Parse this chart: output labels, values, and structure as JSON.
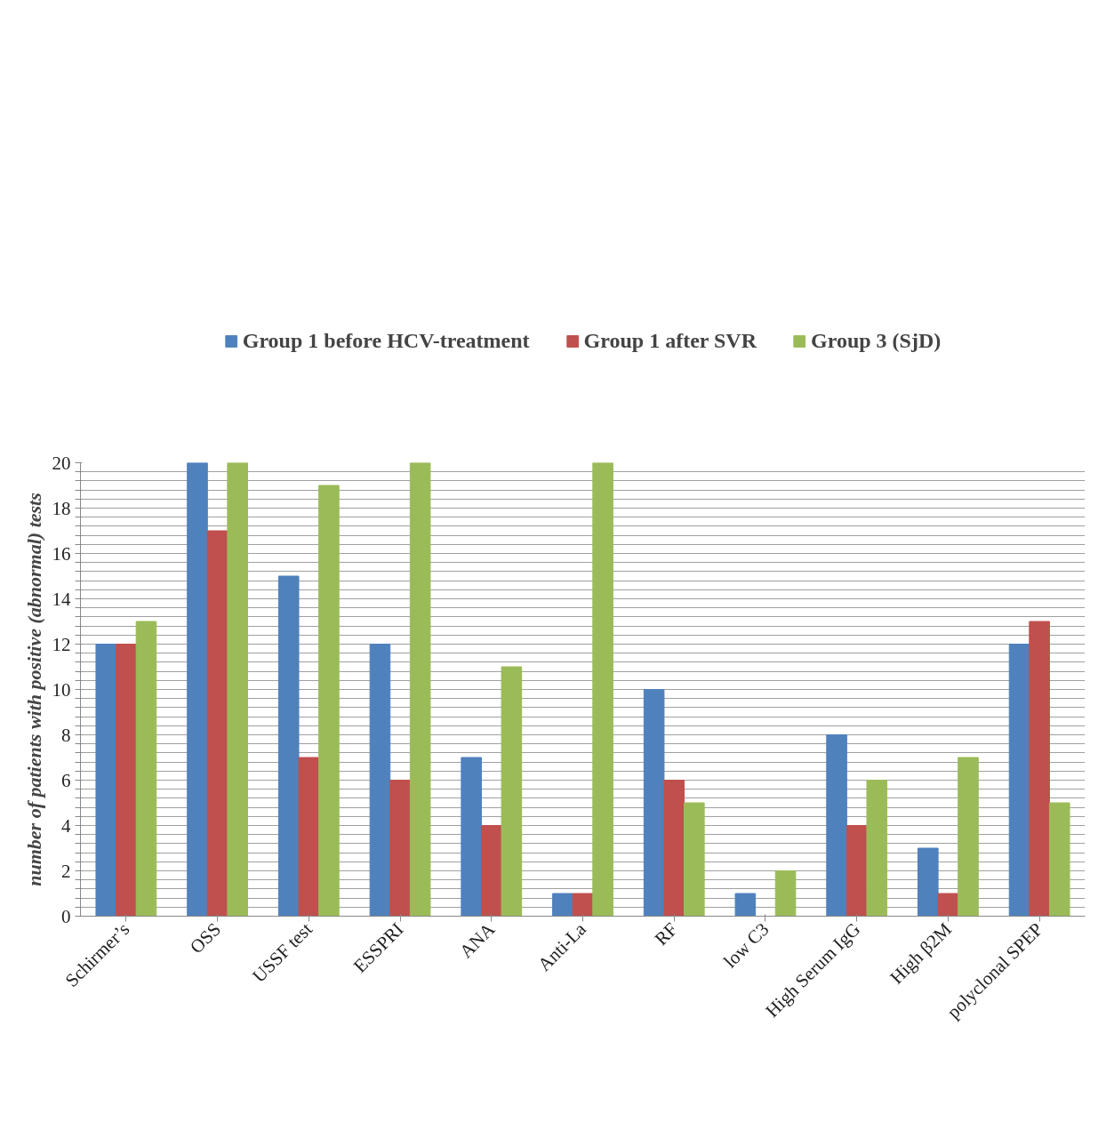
{
  "chart_data": {
    "type": "bar",
    "ylabel": "number of patients with positive (abnormal) tests",
    "categories": [
      "Schirmer’s",
      "OSS",
      "USSF test",
      "ESSPRI",
      "ANA",
      "Anti-La",
      "RF",
      "low C3",
      "High Serum IgG",
      "High β2M",
      "polyclonal SPEP"
    ],
    "series": [
      {
        "name": "Group 1 before HCV-treatment",
        "color": "#4f81bd",
        "values": [
          12,
          20,
          15,
          12,
          7,
          1,
          10,
          1,
          8,
          3,
          12
        ]
      },
      {
        "name": "Group 1 after SVR",
        "color": "#c0504d",
        "values": [
          12,
          17,
          7,
          6,
          4,
          1,
          6,
          0,
          4,
          1,
          13
        ]
      },
      {
        "name": "Group 3 (SjD)",
        "color": "#9bbb59",
        "values": [
          13,
          20,
          19,
          20,
          11,
          20,
          5,
          2,
          6,
          7,
          5
        ]
      }
    ],
    "ylim": [
      0,
      20
    ],
    "yticks": [
      0,
      {
        "value": 0.4,
        "label": null
      },
      {
        "value": 0.8,
        "label": null
      },
      {
        "value": 1.2,
        "label": null
      },
      {
        "value": 1.6,
        "label": null
      },
      2,
      {
        "value": 2.4,
        "label": null
      },
      {
        "value": 2.8,
        "label": null
      },
      {
        "value": 3.2,
        "label": null
      },
      {
        "value": 3.6,
        "label": null
      },
      4,
      {
        "value": 4.4,
        "label": null
      },
      {
        "value": 4.8,
        "label": null
      },
      {
        "value": 5.2,
        "label": null
      },
      {
        "value": 5.6,
        "label": null
      },
      6,
      {
        "value": 6.4,
        "label": null
      },
      {
        "value": 6.8,
        "label": null
      },
      {
        "value": 7.2,
        "label": null
      },
      {
        "value": 7.6,
        "label": null
      },
      8,
      {
        "value": 8.4,
        "label": null
      },
      {
        "value": 8.8,
        "label": null
      },
      {
        "value": 9.2,
        "label": null
      },
      {
        "value": 9.6,
        "label": null
      },
      10,
      {
        "value": 10.4,
        "label": null
      },
      {
        "value": 10.8,
        "label": null
      },
      {
        "value": 11.2,
        "label": null
      },
      {
        "value": 11.6,
        "label": null
      },
      12,
      {
        "value": 12.4,
        "label": null
      },
      {
        "value": 12.8,
        "label": null
      },
      {
        "value": 13.2,
        "label": null
      },
      {
        "value": 13.6,
        "label": null
      },
      14,
      {
        "value": 14.4,
        "label": null
      },
      {
        "value": 14.8,
        "label": null
      },
      {
        "value": 15.2,
        "label": null
      },
      {
        "value": 15.6,
        "label": null
      },
      16,
      {
        "value": 16.4,
        "label": null
      },
      {
        "value": 16.8,
        "label": null
      },
      {
        "value": 17.2,
        "label": null
      },
      {
        "value": 17.6,
        "label": null
      },
      18,
      {
        "value": 18.4,
        "label": null
      },
      {
        "value": 18.8,
        "label": null
      },
      {
        "value": 19.2,
        "label": null
      },
      {
        "value": 19.6,
        "label": null
      },
      20
    ],
    "grid": "y",
    "legend": "top"
  }
}
